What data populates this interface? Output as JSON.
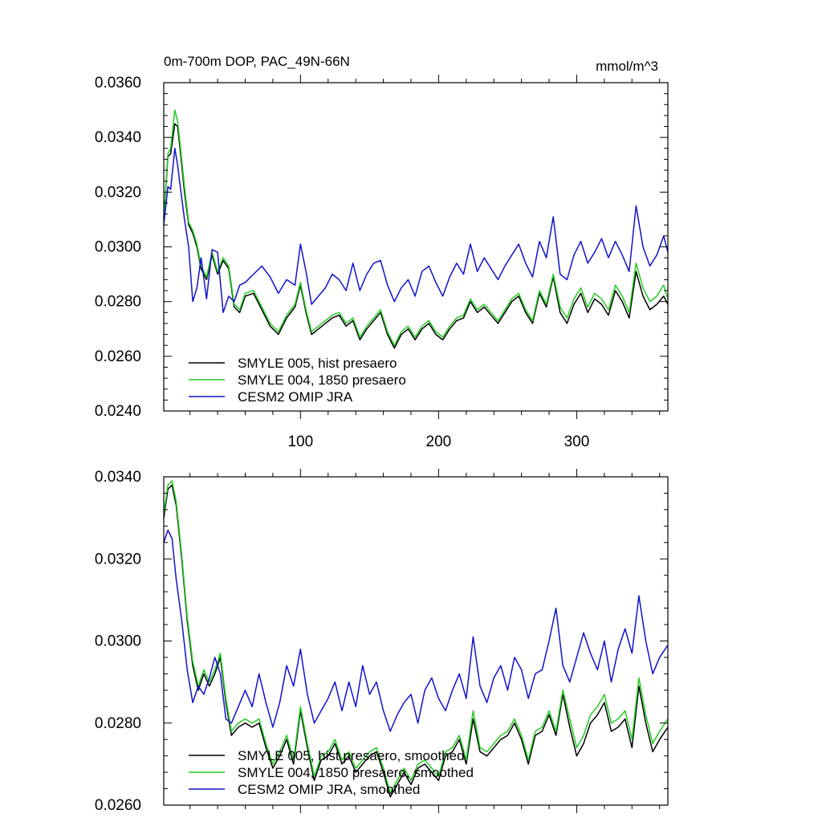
{
  "chart_data": [
    {
      "type": "line",
      "title": "0m-700m DOP, PAC_49N-66N",
      "units": "mmol/m^3",
      "xlabel": "",
      "ylabel": "",
      "xlim": [
        1,
        366
      ],
      "ylim": [
        0.024,
        0.036
      ],
      "x_tick_labels": [
        "100",
        "200",
        "300"
      ],
      "x_ticks": [
        100,
        200,
        300
      ],
      "y_tick_labels": [
        "0.0240",
        "0.0260",
        "0.0280",
        "0.0300",
        "0.0320",
        "0.0340",
        "0.0360"
      ],
      "y_ticks": [
        0.024,
        0.026,
        0.028,
        0.03,
        0.032,
        0.034,
        0.036
      ],
      "legend_position": "bottom-left",
      "series": [
        {
          "name": "SMYLE 005, hist presaero",
          "color": "#000000",
          "x": [
            1,
            4,
            6,
            9,
            11,
            13,
            16,
            19,
            22,
            25,
            28,
            32,
            36,
            40,
            44,
            48,
            52,
            56,
            60,
            66,
            72,
            78,
            84,
            90,
            96,
            100,
            104,
            108,
            113,
            118,
            123,
            128,
            133,
            138,
            143,
            148,
            153,
            158,
            163,
            168,
            173,
            178,
            183,
            188,
            193,
            198,
            203,
            208,
            213,
            218,
            223,
            228,
            233,
            238,
            243,
            248,
            253,
            258,
            263,
            268,
            273,
            278,
            283,
            288,
            293,
            298,
            303,
            308,
            313,
            318,
            323,
            328,
            333,
            338,
            343,
            348,
            353,
            358,
            363,
            366
          ],
          "values": [
            0.031,
            0.0333,
            0.0334,
            0.0345,
            0.0344,
            0.0335,
            0.032,
            0.0308,
            0.0305,
            0.03,
            0.0292,
            0.0288,
            0.0297,
            0.029,
            0.0295,
            0.0292,
            0.0278,
            0.0276,
            0.0282,
            0.0283,
            0.0277,
            0.0271,
            0.0268,
            0.0274,
            0.0278,
            0.0286,
            0.0276,
            0.0268,
            0.027,
            0.0272,
            0.0274,
            0.0275,
            0.0271,
            0.0273,
            0.0266,
            0.027,
            0.0273,
            0.0276,
            0.0268,
            0.0263,
            0.0268,
            0.027,
            0.0266,
            0.027,
            0.0272,
            0.0268,
            0.0266,
            0.027,
            0.0273,
            0.0274,
            0.028,
            0.0276,
            0.0278,
            0.0275,
            0.0272,
            0.0276,
            0.028,
            0.0282,
            0.0276,
            0.0272,
            0.0283,
            0.0278,
            0.0289,
            0.0276,
            0.0272,
            0.0279,
            0.0283,
            0.0276,
            0.0281,
            0.0279,
            0.0275,
            0.0284,
            0.028,
            0.0274,
            0.0291,
            0.0282,
            0.0277,
            0.0279,
            0.0282,
            0.0279
          ]
        },
        {
          "name": "SMYLE 004, 1850 presaero",
          "color": "#22cc22",
          "x": [
            1,
            4,
            6,
            9,
            11,
            13,
            16,
            19,
            22,
            25,
            28,
            32,
            36,
            40,
            44,
            48,
            52,
            56,
            60,
            66,
            72,
            78,
            84,
            90,
            96,
            100,
            104,
            108,
            113,
            118,
            123,
            128,
            133,
            138,
            143,
            148,
            153,
            158,
            163,
            168,
            173,
            178,
            183,
            188,
            193,
            198,
            203,
            208,
            213,
            218,
            223,
            228,
            233,
            238,
            243,
            248,
            253,
            258,
            263,
            268,
            273,
            278,
            283,
            288,
            293,
            298,
            303,
            308,
            313,
            318,
            323,
            328,
            333,
            338,
            343,
            348,
            353,
            358,
            363,
            366
          ],
          "values": [
            0.031,
            0.0334,
            0.0336,
            0.035,
            0.0346,
            0.0337,
            0.0322,
            0.0309,
            0.0306,
            0.0301,
            0.0293,
            0.0289,
            0.0298,
            0.0291,
            0.0296,
            0.0293,
            0.0279,
            0.0277,
            0.0283,
            0.0284,
            0.0278,
            0.0272,
            0.0269,
            0.0275,
            0.0279,
            0.0287,
            0.0277,
            0.0269,
            0.0271,
            0.0273,
            0.0275,
            0.0276,
            0.0272,
            0.0274,
            0.0267,
            0.0271,
            0.0274,
            0.0277,
            0.0269,
            0.0264,
            0.0269,
            0.0271,
            0.0267,
            0.0271,
            0.0273,
            0.0269,
            0.0267,
            0.0271,
            0.0274,
            0.0275,
            0.0281,
            0.0277,
            0.0279,
            0.0276,
            0.0273,
            0.0277,
            0.0281,
            0.0283,
            0.0277,
            0.0273,
            0.0284,
            0.0279,
            0.029,
            0.0278,
            0.0274,
            0.0281,
            0.0285,
            0.0278,
            0.0283,
            0.0281,
            0.0277,
            0.0286,
            0.0282,
            0.0276,
            0.0294,
            0.0285,
            0.028,
            0.0282,
            0.0286,
            0.0281
          ]
        },
        {
          "name": "CESM2 OMIP JRA",
          "color": "#1111cc",
          "x": [
            1,
            4,
            6,
            9,
            11,
            13,
            16,
            19,
            22,
            25,
            28,
            32,
            36,
            40,
            44,
            48,
            52,
            56,
            60,
            66,
            72,
            78,
            84,
            90,
            96,
            100,
            104,
            108,
            113,
            118,
            123,
            128,
            133,
            138,
            143,
            148,
            153,
            158,
            163,
            168,
            173,
            178,
            183,
            188,
            193,
            198,
            203,
            208,
            213,
            218,
            223,
            228,
            233,
            238,
            243,
            248,
            253,
            258,
            263,
            268,
            273,
            278,
            283,
            288,
            293,
            298,
            303,
            308,
            313,
            318,
            323,
            328,
            333,
            338,
            343,
            348,
            353,
            358,
            363,
            366
          ],
          "values": [
            0.0308,
            0.0322,
            0.0321,
            0.0336,
            0.033,
            0.0322,
            0.031,
            0.03,
            0.028,
            0.0285,
            0.0296,
            0.0281,
            0.0299,
            0.0298,
            0.0276,
            0.0282,
            0.028,
            0.0286,
            0.0287,
            0.029,
            0.0293,
            0.0289,
            0.0283,
            0.0288,
            0.0286,
            0.0301,
            0.0291,
            0.0279,
            0.0282,
            0.0285,
            0.029,
            0.0288,
            0.0284,
            0.0294,
            0.0284,
            0.029,
            0.0294,
            0.0295,
            0.0286,
            0.028,
            0.0285,
            0.0288,
            0.0282,
            0.0291,
            0.0293,
            0.0287,
            0.0282,
            0.0289,
            0.0294,
            0.029,
            0.0301,
            0.0291,
            0.0296,
            0.0292,
            0.0288,
            0.0293,
            0.0297,
            0.0301,
            0.0294,
            0.0289,
            0.0302,
            0.0296,
            0.0311,
            0.029,
            0.0288,
            0.0297,
            0.0302,
            0.0294,
            0.0298,
            0.0303,
            0.0296,
            0.0302,
            0.0297,
            0.0291,
            0.0315,
            0.03,
            0.0293,
            0.0297,
            0.0304,
            0.0298
          ]
        }
      ]
    },
    {
      "type": "line",
      "title": "",
      "xlabel": "",
      "ylabel": "",
      "xlim": [
        1,
        366
      ],
      "ylim": [
        0.026,
        0.034
      ],
      "x_tick_labels": [],
      "x_ticks": [
        100,
        200,
        300
      ],
      "y_tick_labels": [
        "0.0260",
        "0.0280",
        "0.0300",
        "0.0320",
        "0.0340"
      ],
      "y_ticks": [
        0.026,
        0.028,
        0.03,
        0.032,
        0.034
      ],
      "legend_position": "bottom-left",
      "series": [
        {
          "name": "SMYLE 005, hist presaero, smoothed",
          "color": "#000000",
          "x": [
            1,
            4,
            7,
            10,
            14,
            18,
            22,
            26,
            30,
            34,
            38,
            42,
            46,
            50,
            55,
            60,
            65,
            70,
            75,
            80,
            85,
            90,
            95,
            100,
            105,
            110,
            115,
            120,
            125,
            130,
            135,
            140,
            145,
            150,
            155,
            160,
            165,
            170,
            175,
            180,
            185,
            190,
            195,
            200,
            205,
            210,
            215,
            220,
            225,
            230,
            235,
            240,
            245,
            250,
            255,
            260,
            265,
            270,
            275,
            280,
            285,
            290,
            295,
            300,
            305,
            310,
            315,
            320,
            325,
            330,
            335,
            340,
            345,
            350,
            355,
            360,
            366
          ],
          "values": [
            0.033,
            0.0337,
            0.0338,
            0.0333,
            0.032,
            0.0305,
            0.0294,
            0.0288,
            0.0292,
            0.0289,
            0.0292,
            0.0296,
            0.0285,
            0.0277,
            0.0279,
            0.028,
            0.0279,
            0.028,
            0.0274,
            0.0269,
            0.0272,
            0.0276,
            0.027,
            0.0283,
            0.0274,
            0.0266,
            0.0271,
            0.0272,
            0.0275,
            0.027,
            0.0272,
            0.0268,
            0.027,
            0.0272,
            0.0273,
            0.0268,
            0.0262,
            0.0265,
            0.0268,
            0.0265,
            0.0269,
            0.027,
            0.0268,
            0.0266,
            0.0272,
            0.0273,
            0.0276,
            0.027,
            0.0281,
            0.0273,
            0.0272,
            0.0274,
            0.0276,
            0.0277,
            0.028,
            0.0276,
            0.027,
            0.0277,
            0.0278,
            0.0282,
            0.0277,
            0.0287,
            0.0279,
            0.0272,
            0.0275,
            0.028,
            0.0282,
            0.0285,
            0.0278,
            0.0279,
            0.0281,
            0.0274,
            0.0289,
            0.028,
            0.0273,
            0.0276,
            0.0279
          ]
        },
        {
          "name": "SMYLE 004, 1850 presaero, smoothed",
          "color": "#22cc22",
          "x": [
            1,
            4,
            7,
            10,
            14,
            18,
            22,
            26,
            30,
            34,
            38,
            42,
            46,
            50,
            55,
            60,
            65,
            70,
            75,
            80,
            85,
            90,
            95,
            100,
            105,
            110,
            115,
            120,
            125,
            130,
            135,
            140,
            145,
            150,
            155,
            160,
            165,
            170,
            175,
            180,
            185,
            190,
            195,
            200,
            205,
            210,
            215,
            220,
            225,
            230,
            235,
            240,
            245,
            250,
            255,
            260,
            265,
            270,
            275,
            280,
            285,
            290,
            295,
            300,
            305,
            310,
            315,
            320,
            325,
            330,
            335,
            340,
            345,
            350,
            355,
            360,
            366
          ],
          "values": [
            0.0331,
            0.0338,
            0.0339,
            0.0334,
            0.0321,
            0.0306,
            0.0295,
            0.0289,
            0.0293,
            0.029,
            0.0293,
            0.0297,
            0.0286,
            0.0278,
            0.028,
            0.0281,
            0.028,
            0.0281,
            0.0275,
            0.027,
            0.0273,
            0.0277,
            0.0271,
            0.0284,
            0.0275,
            0.0267,
            0.0272,
            0.0273,
            0.0276,
            0.0271,
            0.0273,
            0.0269,
            0.0271,
            0.0273,
            0.0274,
            0.0269,
            0.0263,
            0.0266,
            0.0269,
            0.0266,
            0.027,
            0.0271,
            0.0269,
            0.0267,
            0.0273,
            0.0274,
            0.0277,
            0.0271,
            0.0283,
            0.0274,
            0.0273,
            0.0275,
            0.0277,
            0.0278,
            0.0281,
            0.0277,
            0.0271,
            0.0278,
            0.0279,
            0.0283,
            0.0278,
            0.0288,
            0.0281,
            0.0274,
            0.0277,
            0.0282,
            0.0284,
            0.0287,
            0.028,
            0.0281,
            0.0283,
            0.0276,
            0.0291,
            0.0282,
            0.0275,
            0.0278,
            0.0281
          ]
        },
        {
          "name": "CESM2 OMIP JRA, smoothed",
          "color": "#1111cc",
          "x": [
            1,
            4,
            7,
            10,
            14,
            18,
            22,
            26,
            30,
            34,
            38,
            42,
            46,
            50,
            55,
            60,
            65,
            70,
            75,
            80,
            85,
            90,
            95,
            100,
            105,
            110,
            115,
            120,
            125,
            130,
            135,
            140,
            145,
            150,
            155,
            160,
            165,
            170,
            175,
            180,
            185,
            190,
            195,
            200,
            205,
            210,
            215,
            220,
            225,
            230,
            235,
            240,
            245,
            250,
            255,
            260,
            265,
            270,
            275,
            280,
            285,
            290,
            295,
            300,
            305,
            310,
            315,
            320,
            325,
            330,
            335,
            340,
            345,
            350,
            355,
            360,
            366
          ],
          "values": [
            0.0324,
            0.0327,
            0.0325,
            0.0315,
            0.0305,
            0.0293,
            0.0285,
            0.0289,
            0.0287,
            0.0291,
            0.0296,
            0.0292,
            0.0281,
            0.028,
            0.0284,
            0.0288,
            0.0284,
            0.0292,
            0.0285,
            0.0279,
            0.0285,
            0.0294,
            0.0289,
            0.0298,
            0.0287,
            0.028,
            0.0283,
            0.0286,
            0.029,
            0.0283,
            0.029,
            0.0284,
            0.0294,
            0.0287,
            0.029,
            0.0283,
            0.0278,
            0.0282,
            0.0285,
            0.0287,
            0.028,
            0.0288,
            0.0291,
            0.0286,
            0.0283,
            0.0288,
            0.0292,
            0.0286,
            0.0301,
            0.0289,
            0.0285,
            0.0291,
            0.0294,
            0.0288,
            0.0296,
            0.0293,
            0.0286,
            0.0292,
            0.0293,
            0.03,
            0.0308,
            0.0294,
            0.029,
            0.0296,
            0.0302,
            0.0297,
            0.0293,
            0.03,
            0.029,
            0.0298,
            0.0303,
            0.0297,
            0.0311,
            0.03,
            0.0292,
            0.0296,
            0.0299
          ]
        }
      ]
    }
  ]
}
